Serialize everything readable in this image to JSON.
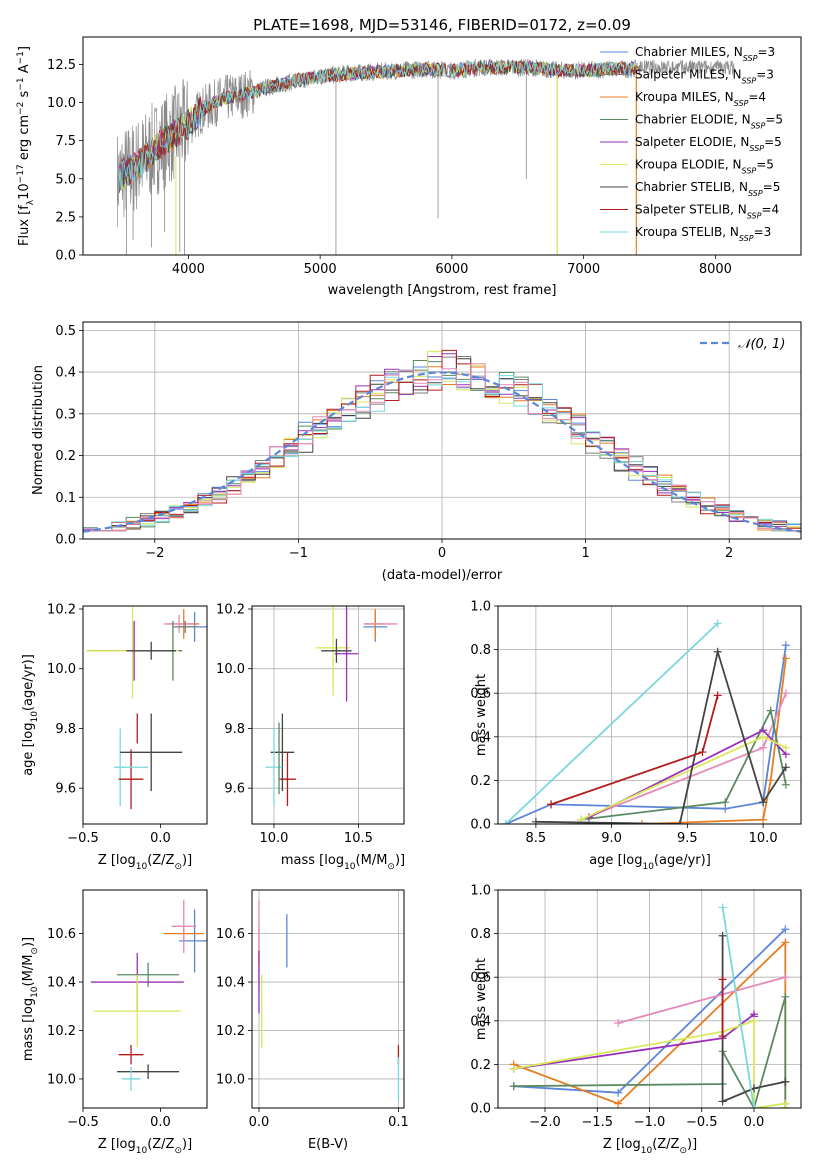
{
  "title": "PLATE=1698, MJD=53146, FIBERID=0172, z=0.09",
  "colors": {
    "Chabrier MILES": "#5b86d9",
    "Salpeter MILES": "#7f7f7f",
    "Kroupa MILES": "#e67e22",
    "Chabrier ELODIE": "#5a8a62",
    "Salpeter ELODIE": "#9b30b8",
    "Kroupa ELODIE": "#d8e85a",
    "Chabrier STELIB": "#444444",
    "Salpeter STELIB": "#b31b1b",
    "Kroupa STELIB": "#7ad8dd",
    "extra_pink": "#e58ab8",
    "normal_curve": "#5b86d9",
    "grid": "#b0b0b0"
  },
  "chart_data": [
    {
      "id": "spectrum",
      "type": "line",
      "xlabel": "wavelength [Angstrom, rest frame]",
      "ylabel": "Flux [f",
      "ylabel_sub": "λ",
      "ylabel_rest": "10",
      "ylabel_sup": "−17",
      "ylabel_units": " erg cm",
      "ylabel_sup2": "−2",
      "ylabel_s": " s",
      "ylabel_sup3": "−1",
      "ylabel_A": " A",
      "ylabel_sup4": "−1",
      "ylabel_end": "]",
      "xlim": [
        3200,
        8650
      ],
      "ylim": [
        0,
        14.3
      ],
      "xticks": [
        "4000",
        "5000",
        "6000",
        "7000",
        "8000"
      ],
      "yticks": [
        "0.0",
        "2.5",
        "5.0",
        "7.5",
        "10.0",
        "12.5"
      ],
      "xtick_values": [
        4000,
        5000,
        6000,
        7000,
        8000
      ],
      "ytick_values": [
        0,
        2.5,
        5,
        7.5,
        10,
        12.5
      ],
      "continuum": {
        "x": [
          3450,
          3600,
          3750,
          3900,
          4000,
          4100,
          4250,
          4400,
          4600,
          4800,
          5000,
          5200,
          5400,
          5600,
          5800,
          6000,
          6200,
          6400,
          6600,
          6800,
          7000,
          7200,
          7400
        ],
        "y": [
          5.0,
          5.8,
          7.0,
          8.0,
          8.6,
          9.5,
          10.2,
          10.5,
          11.0,
          11.4,
          11.7,
          11.9,
          12.0,
          12.1,
          12.2,
          12.1,
          12.3,
          12.3,
          12.3,
          12.1,
          12.1,
          12.2,
          12.2
        ]
      },
      "legend": [
        {
          "name": "Chabrier MILES, N",
          "sub": "SSP",
          "val": "=3"
        },
        {
          "name": "Salpeter MILES, N",
          "sub": "SSP",
          "val": "=3"
        },
        {
          "name": "Kroupa MILES, N",
          "sub": "SSP",
          "val": "=4"
        },
        {
          "name": "Chabrier ELODIE, N",
          "sub": "SSP",
          "val": "=5"
        },
        {
          "name": "Salpeter ELODIE, N",
          "sub": "SSP",
          "val": "=5"
        },
        {
          "name": "Kroupa ELODIE, N",
          "sub": "SSP",
          "val": "=5"
        },
        {
          "name": "Chabrier STELIB, N",
          "sub": "SSP",
          "val": "=5"
        },
        {
          "name": "Salpeter STELIB, N",
          "sub": "SSP",
          "val": "=4"
        },
        {
          "name": "Kroupa STELIB, N",
          "sub": "SSP",
          "val": "=3"
        }
      ],
      "legend_placement": "top-right"
    },
    {
      "id": "residuals",
      "type": "histogram",
      "xlabel": "(data-model)/error",
      "ylabel": "Normed distribution",
      "xlim": [
        -2.5,
        2.5
      ],
      "ylim": [
        0,
        0.52
      ],
      "xticks": [
        "−2",
        "−1",
        "0",
        "1",
        "2"
      ],
      "xtick_values": [
        -2,
        -1,
        0,
        1,
        2
      ],
      "yticks": [
        "0.0",
        "0.1",
        "0.2",
        "0.3",
        "0.4",
        "0.5"
      ],
      "ytick_values": [
        0,
        0.1,
        0.2,
        0.3,
        0.4,
        0.5
      ],
      "grid": true,
      "bin_width": 0.1,
      "legend": "𝒩(0, 1)",
      "legend_placement": "top-right"
    },
    {
      "id": "age_vs_Z",
      "type": "errorbar",
      "xlabel": "Z [log",
      "xlabel_sub": "10",
      "xlabel_rest": "(Z/Z",
      "xlabel_sub2": "⊙",
      "xlabel_end": ")]",
      "ylabel": "age  [log",
      "ylabel_sub": "10",
      "ylabel_rest": "(age/yr)]",
      "xlim": [
        -0.5,
        0.3
      ],
      "ylim": [
        9.48,
        10.21
      ],
      "xticks": [
        "−0.5",
        "0.0"
      ],
      "xtick_values": [
        -0.5,
        0.0
      ],
      "yticks": [
        "9.6",
        "9.8",
        "10.0",
        "10.2"
      ],
      "ytick_values": [
        9.6,
        9.8,
        10.0,
        10.2
      ],
      "points": [
        {
          "c": "Chabrier MILES",
          "x": 0.22,
          "y": 10.14,
          "xe": 0.1,
          "ye": 0.05
        },
        {
          "c": "Kroupa MILES",
          "x": 0.15,
          "y": 10.15,
          "xe": 0.1,
          "ye": 0.05
        },
        {
          "c": "extra_pink",
          "x": 0.12,
          "y": 10.15,
          "xe": 0.1,
          "ye": 0.03
        },
        {
          "c": "Salpeter MILES",
          "x": 0.16,
          "y": 10.14,
          "xe": 0.08,
          "ye": 0.02
        },
        {
          "c": "Chabrier ELODIE",
          "x": 0.08,
          "y": 10.06,
          "xe": 0.06,
          "ye": 0.1
        },
        {
          "c": "Salpeter ELODIE",
          "x": -0.17,
          "y": 10.06,
          "xe": 0.3,
          "ye": 0.1
        },
        {
          "c": "Kroupa ELODIE",
          "x": -0.18,
          "y": 10.06,
          "xe": 0.3,
          "ye": 0.16
        },
        {
          "c": "Chabrier STELIB",
          "x": -0.06,
          "y": 10.06,
          "xe": 0.16,
          "ye": 0.03
        },
        {
          "c": "Kroupa STELIB",
          "x": -0.26,
          "y": 9.67,
          "xe": 0.04,
          "ye": 0.13
        },
        {
          "c": "Salpeter STELIB",
          "x": -0.19,
          "y": 9.63,
          "xe": 0.08,
          "ye": 0.1
        },
        {
          "c": "Chabrier STELIB",
          "x": -0.06,
          "y": 9.72,
          "xe": 0.2,
          "ye": 0.13
        },
        {
          "c": "Salpeter STELIB",
          "x": -0.15,
          "y": 9.8,
          "xe": 0.0,
          "ye": 0.05
        },
        {
          "c": "Kroupa STELIB",
          "x": -0.18,
          "y": 9.67,
          "xe": 0.1,
          "ye": 0.0
        }
      ]
    },
    {
      "id": "age_vs_mass",
      "type": "errorbar",
      "xlabel": "mass [log",
      "xlabel_sub": "10",
      "xlabel_rest": "(M/M",
      "xlabel_sub2": "⊙",
      "xlabel_end": ")]",
      "xlim": [
        9.87,
        10.77
      ],
      "ylim": [
        9.48,
        10.21
      ],
      "xticks": [
        "10.0",
        "10.5"
      ],
      "xtick_values": [
        10.0,
        10.5
      ],
      "yticks": [
        "9.6",
        "9.8",
        "10.0",
        "10.2"
      ],
      "ytick_values": [
        9.6,
        9.8,
        10.0,
        10.2
      ],
      "points": [
        {
          "c": "Chabrier MILES",
          "x": 10.6,
          "y": 10.14,
          "xe": 0.07,
          "ye": 0.05
        },
        {
          "c": "Kroupa MILES",
          "x": 10.6,
          "y": 10.15,
          "xe": 0.06,
          "ye": 0.05
        },
        {
          "c": "extra_pink",
          "x": 10.63,
          "y": 10.15,
          "xe": 0.1,
          "ye": 0.0
        },
        {
          "c": "Kroupa ELODIE",
          "x": 10.35,
          "y": 10.07,
          "xe": 0.1,
          "ye": 0.16
        },
        {
          "c": "Salpeter ELODIE",
          "x": 10.43,
          "y": 10.05,
          "xe": 0.07,
          "ye": 0.16
        },
        {
          "c": "Chabrier STELIB",
          "x": 10.37,
          "y": 10.06,
          "xe": 0.09,
          "ye": 0.04
        },
        {
          "c": "Chabrier STELIB",
          "x": 10.05,
          "y": 9.72,
          "xe": 0.07,
          "ye": 0.13
        },
        {
          "c": "Kroupa STELIB",
          "x": 10.0,
          "y": 9.67,
          "xe": 0.05,
          "ye": 0.13
        },
        {
          "c": "Salpeter STELIB",
          "x": 10.08,
          "y": 9.63,
          "xe": 0.05,
          "ye": 0.09
        },
        {
          "c": "Chabrier ELODIE",
          "x": 10.03,
          "y": 9.7,
          "xe": 0.0,
          "ye": 0.12
        }
      ]
    },
    {
      "id": "weight_vs_age",
      "type": "line",
      "xlabel": "age  [log",
      "xlabel_sub": "10",
      "xlabel_rest": "(age/yr)]",
      "ylabel": "mass weight",
      "xlim": [
        8.25,
        10.25
      ],
      "ylim": [
        0,
        1.0
      ],
      "xticks": [
        "8.5",
        "9.0",
        "9.5",
        "10.0"
      ],
      "xtick_values": [
        8.5,
        9.0,
        9.5,
        10.0
      ],
      "yticks": [
        "0.0",
        "0.2",
        "0.4",
        "0.6",
        "0.8",
        "1.0"
      ],
      "ytick_values": [
        0,
        0.2,
        0.4,
        0.6,
        0.8,
        1.0
      ],
      "grid": true,
      "series": [
        {
          "c": "Chabrier MILES",
          "x": [
            8.3,
            8.6,
            9.75,
            10.0,
            10.15
          ],
          "y": [
            0.0,
            0.09,
            0.07,
            0.1,
            0.82
          ]
        },
        {
          "c": "Kroupa MILES",
          "x": [
            9.2,
            10.0,
            10.05,
            10.15
          ],
          "y": [
            0.0,
            0.02,
            0.2,
            0.76
          ]
        },
        {
          "c": "extra_pink",
          "x": [
            8.8,
            10.0,
            10.15
          ],
          "y": [
            0.02,
            0.35,
            0.6
          ]
        },
        {
          "c": "Chabrier ELODIE",
          "x": [
            8.8,
            9.75,
            10.05,
            10.15
          ],
          "y": [
            0.02,
            0.1,
            0.52,
            0.18
          ]
        },
        {
          "c": "Salpeter ELODIE",
          "x": [
            8.85,
            10.0,
            10.15
          ],
          "y": [
            0.03,
            0.43,
            0.32
          ]
        },
        {
          "c": "Kroupa ELODIE",
          "x": [
            8.8,
            10.0,
            10.15
          ],
          "y": [
            0.02,
            0.4,
            0.35
          ]
        },
        {
          "c": "Chabrier STELIB",
          "x": [
            8.5,
            9.45,
            9.7,
            10.0,
            10.15
          ],
          "y": [
            0.01,
            0.0,
            0.79,
            0.1,
            0.26
          ]
        },
        {
          "c": "Salpeter STELIB",
          "x": [
            8.6,
            9.6,
            9.7
          ],
          "y": [
            0.09,
            0.33,
            0.59
          ]
        },
        {
          "c": "Kroupa STELIB",
          "x": [
            8.3,
            9.7
          ],
          "y": [
            0.0,
            0.92
          ]
        }
      ]
    },
    {
      "id": "mass_vs_Z",
      "type": "errorbar",
      "xlabel": "Z [log",
      "xlabel_sub": "10",
      "xlabel_rest": "(Z/Z",
      "xlabel_sub2": "⊙",
      "xlabel_end": ")]",
      "ylabel": "mass [log",
      "ylabel_sub": "10",
      "ylabel_rest": "(M/M",
      "ylabel_sub2": "⊙",
      "ylabel_end": ")]",
      "xlim": [
        -0.5,
        0.3
      ],
      "ylim": [
        9.88,
        10.78
      ],
      "xticks": [
        "−0.5",
        "0.0"
      ],
      "xtick_values": [
        -0.5,
        0.0
      ],
      "yticks": [
        "10.0",
        "10.2",
        "10.4",
        "10.6"
      ],
      "ytick_values": [
        10.0,
        10.2,
        10.4,
        10.6
      ],
      "points": [
        {
          "c": "Chabrier MILES",
          "x": 0.22,
          "y": 10.57,
          "xe": 0.1,
          "ye": 0.13
        },
        {
          "c": "Kroupa MILES",
          "x": 0.15,
          "y": 10.6,
          "xe": 0.13,
          "ye": 0.03
        },
        {
          "c": "extra_pink",
          "x": 0.15,
          "y": 10.63,
          "xe": 0.08,
          "ye": 0.11
        },
        {
          "c": "Chabrier ELODIE",
          "x": -0.08,
          "y": 10.43,
          "xe": 0.2,
          "ye": 0.05
        },
        {
          "c": "Salpeter ELODIE",
          "x": -0.15,
          "y": 10.4,
          "xe": 0.3,
          "ye": 0.12
        },
        {
          "c": "Kroupa ELODIE",
          "x": -0.15,
          "y": 10.28,
          "xe": 0.28,
          "ye": 0.15
        },
        {
          "c": "Chabrier STELIB",
          "x": -0.08,
          "y": 10.03,
          "xe": 0.2,
          "ye": 0.03
        },
        {
          "c": "Salpeter STELIB",
          "x": -0.19,
          "y": 10.1,
          "xe": 0.08,
          "ye": 0.04
        },
        {
          "c": "Kroupa STELIB",
          "x": -0.19,
          "y": 10.0,
          "xe": 0.06,
          "ye": 0.05
        }
      ]
    },
    {
      "id": "mass_vs_EBV",
      "type": "errorbar",
      "xlabel": "E(B-V)",
      "xlim": [
        -0.005,
        0.104
      ],
      "ylim": [
        9.88,
        10.78
      ],
      "xticks": [
        "0.0",
        "0.1"
      ],
      "xtick_values": [
        0.0,
        0.1
      ],
      "yticks": [
        "10.0",
        "10.2",
        "10.4",
        "10.6"
      ],
      "ytick_values": [
        10.0,
        10.2,
        10.4,
        10.6
      ],
      "points": [
        {
          "c": "Chabrier MILES",
          "x": 0.02,
          "y": 10.57,
          "xe": 0.0,
          "ye": 0.11
        },
        {
          "c": "Kroupa MILES",
          "x": 0.0,
          "y": 10.55,
          "xe": 0.0,
          "ye": 0.08
        },
        {
          "c": "extra_pink",
          "x": 0.0,
          "y": 10.55,
          "xe": 0.0,
          "ye": 0.19
        },
        {
          "c": "Salpeter ELODIE",
          "x": 0.0,
          "y": 10.4,
          "xe": 0.0,
          "ye": 0.13
        },
        {
          "c": "Kroupa ELODIE",
          "x": 0.002,
          "y": 10.28,
          "xe": 0.0,
          "ye": 0.15
        },
        {
          "c": "Salpeter STELIB",
          "x": 0.1,
          "y": 10.1,
          "xe": 0.0,
          "ye": 0.04
        },
        {
          "c": "Kroupa STELIB",
          "x": 0.1,
          "y": 10.0,
          "xe": 0.0,
          "ye": 0.09
        }
      ]
    },
    {
      "id": "weight_vs_Z",
      "type": "line",
      "xlabel": "Z [log",
      "xlabel_sub": "10",
      "xlabel_rest": "(Z/Z",
      "xlabel_sub2": "⊙",
      "xlabel_end": ")]",
      "ylabel": "mass weight",
      "xlim": [
        -2.45,
        0.45
      ],
      "ylim": [
        0,
        1.0
      ],
      "xticks": [
        "−2.0",
        "−1.5",
        "−1.0",
        "−0.5",
        "0.0"
      ],
      "xtick_values": [
        -2.0,
        -1.5,
        -1.0,
        -0.5,
        0.0
      ],
      "yticks": [
        "0.0",
        "0.2",
        "0.4",
        "0.6",
        "0.8",
        "1.0"
      ],
      "ytick_values": [
        0,
        0.2,
        0.4,
        0.6,
        0.8,
        1.0
      ],
      "grid": true,
      "series": [
        {
          "c": "Chabrier MILES",
          "x": [
            -2.3,
            -1.3,
            0.3
          ],
          "y": [
            0.1,
            0.07,
            0.82
          ]
        },
        {
          "c": "Kroupa MILES",
          "x": [
            -2.3,
            -1.3,
            0.3,
            0.3
          ],
          "y": [
            0.2,
            0.02,
            0.76,
            0.0
          ]
        },
        {
          "c": "extra_pink",
          "x": [
            -1.3,
            0.3
          ],
          "y": [
            0.39,
            0.6
          ]
        },
        {
          "c": "Chabrier ELODIE",
          "x": [
            -2.3,
            -0.3,
            -0.3,
            0.0,
            0.3,
            0.3
          ],
          "y": [
            0.1,
            0.11,
            0.26,
            0.0,
            0.51,
            0.02
          ]
        },
        {
          "c": "Salpeter ELODIE",
          "x": [
            -2.3,
            -0.3,
            0.0,
            0.0
          ],
          "y": [
            0.18,
            0.32,
            0.43,
            0.42
          ]
        },
        {
          "c": "Kroupa ELODIE",
          "x": [
            -2.3,
            -0.3,
            0.0,
            0.0,
            0.3
          ],
          "y": [
            0.18,
            0.35,
            0.4,
            0.0,
            0.02
          ]
        },
        {
          "c": "Chabrier STELIB",
          "x": [
            -0.3,
            -0.3,
            0.0,
            0.3,
            0.3
          ],
          "y": [
            0.79,
            0.03,
            0.09,
            0.12,
            0.12
          ]
        },
        {
          "c": "Salpeter STELIB",
          "x": [
            -0.3,
            -0.3
          ],
          "y": [
            0.59,
            0.33
          ]
        },
        {
          "c": "Kroupa STELIB",
          "x": [
            -0.3,
            0.0
          ],
          "y": [
            0.92,
            0.0
          ]
        }
      ]
    }
  ]
}
